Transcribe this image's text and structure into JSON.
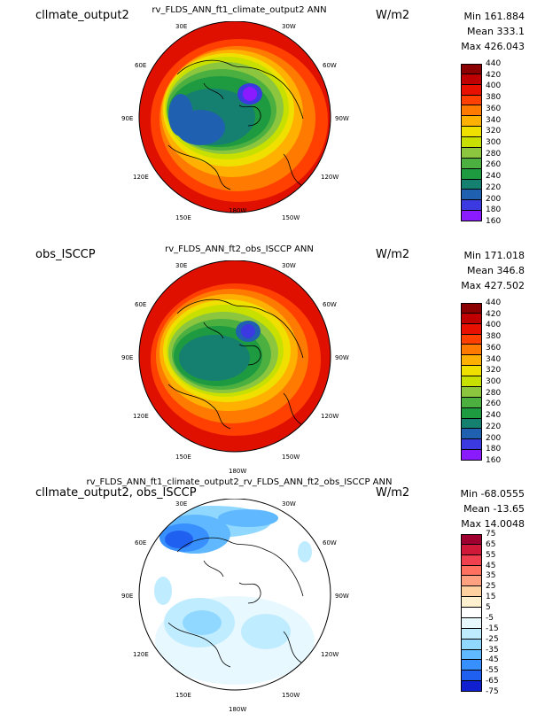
{
  "panels": [
    {
      "case_label": "cllmate_output2",
      "title": "rv_FLDS_ANN_ft1_climate_output2  ANN",
      "units": "W/m2",
      "stats": {
        "min": "Min 161.884",
        "mean": "Mean 333.1",
        "max": "Max 426.043"
      },
      "lon_labels": [
        "30E",
        "30W",
        "60E",
        "60W",
        "90E",
        "90W",
        "120E",
        "120W",
        "150E",
        "150W",
        "180W"
      ],
      "colorbar_labels": [
        "440",
        "420",
        "400",
        "380",
        "360",
        "340",
        "320",
        "300",
        "280",
        "260",
        "240",
        "220",
        "200",
        "180",
        "160"
      ],
      "colorbar_colors": [
        "#8b0000",
        "#c00000",
        "#e81000",
        "#ff4000",
        "#ff7a00",
        "#ffb000",
        "#f0e000",
        "#c8e000",
        "#8cc63f",
        "#4cb040",
        "#1e9a40",
        "#168070",
        "#2060b0",
        "#3a3ae0",
        "#8a1aff"
      ]
    },
    {
      "case_label": "obs_ISCCP",
      "title": "rv_FLDS_ANN_ft2_obs_ISCCP  ANN",
      "units": "W/m2",
      "stats": {
        "min": "Min 171.018",
        "mean": "Mean 346.8",
        "max": "Max 427.502"
      },
      "lon_labels": [
        "30E",
        "30W",
        "60E",
        "60W",
        "90E",
        "90W",
        "120E",
        "120W",
        "150E",
        "150W",
        "180W"
      ],
      "colorbar_labels": [
        "440",
        "420",
        "400",
        "380",
        "360",
        "340",
        "320",
        "300",
        "280",
        "260",
        "240",
        "220",
        "200",
        "180",
        "160"
      ],
      "colorbar_colors": [
        "#8b0000",
        "#c00000",
        "#e81000",
        "#ff4000",
        "#ff7a00",
        "#ffb000",
        "#f0e000",
        "#c8e000",
        "#8cc63f",
        "#4cb040",
        "#1e9a40",
        "#168070",
        "#2060b0",
        "#3a3ae0",
        "#8a1aff"
      ]
    },
    {
      "case_label": "cllmate_output2, obs_ISCCP",
      "title": "rv_FLDS_ANN_ft1_climate_output2_rv_FLDS_ANN_ft2_obs_ISCCP  ANN",
      "units": "W/m2",
      "stats": {
        "min": "Min -68.0555",
        "mean": "Mean -13.65",
        "max": "Max 14.0048"
      },
      "lon_labels": [
        "30E",
        "30W",
        "60E",
        "60W",
        "90E",
        "90W",
        "120E",
        "120W",
        "150E",
        "150W",
        "180W"
      ],
      "colorbar_labels": [
        "75",
        "65",
        "55",
        "45",
        "35",
        "25",
        "15",
        "5",
        "-5",
        "-15",
        "-25",
        "-35",
        "-45",
        "-55",
        "-65",
        "-75"
      ],
      "colorbar_colors": [
        "#a00030",
        "#d01838",
        "#f04050",
        "#ff7060",
        "#ffa080",
        "#ffd0a0",
        "#fff0d0",
        "#ffffff",
        "#e8f8ff",
        "#c0ecff",
        "#90d8ff",
        "#60b8ff",
        "#3890ff",
        "#2060f0",
        "#1020d0"
      ]
    }
  ]
}
